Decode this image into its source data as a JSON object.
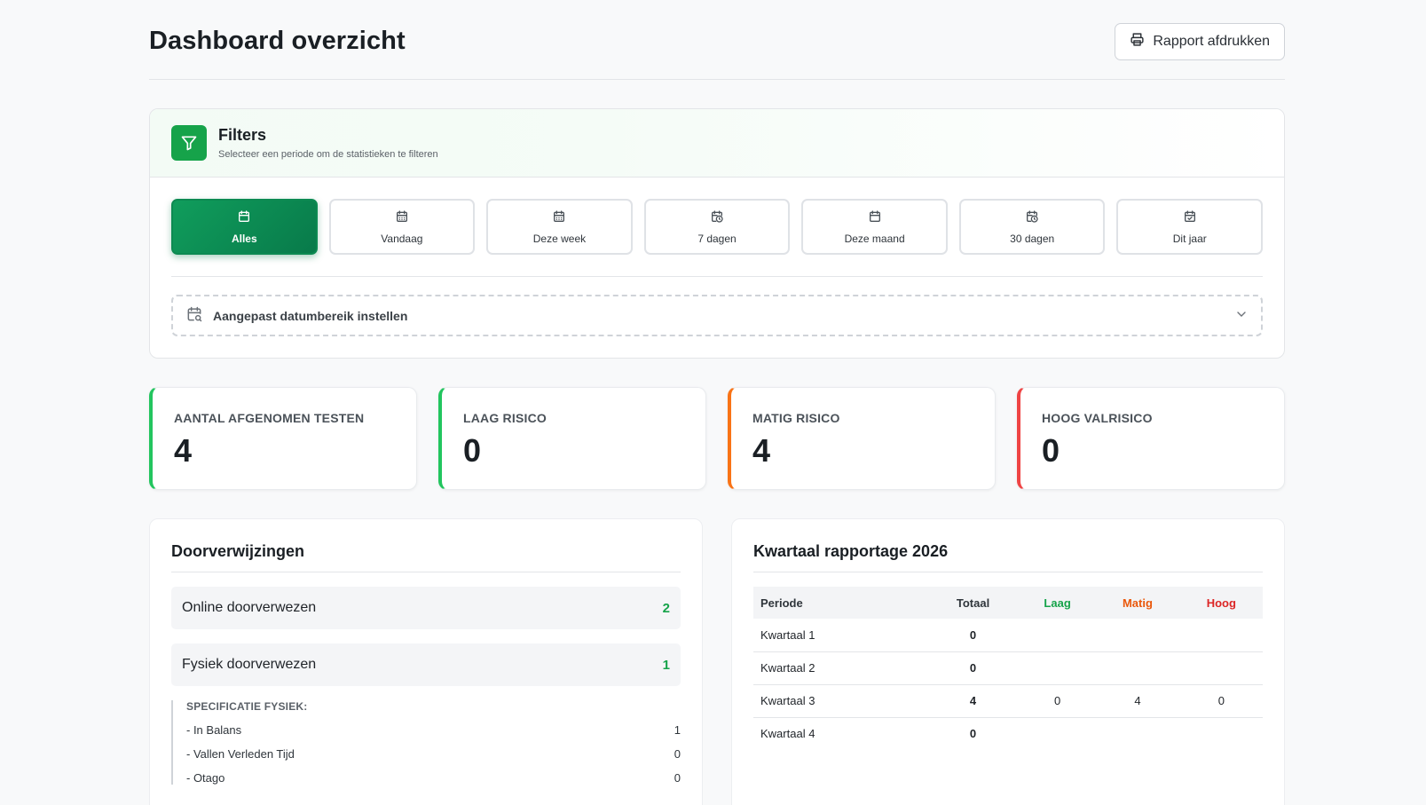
{
  "header": {
    "title": "Dashboard overzicht",
    "print_label": "Rapport afdrukken"
  },
  "filters": {
    "title": "Filters",
    "subtitle": "Selecteer een periode om de statistieken te filteren",
    "periods": [
      {
        "label": "Alles",
        "icon": "calendar-icon",
        "active": true
      },
      {
        "label": "Vandaag",
        "icon": "calendar-icon",
        "active": false
      },
      {
        "label": "Deze week",
        "icon": "calendar-icon",
        "active": false
      },
      {
        "label": "7 dagen",
        "icon": "calendar-clock-icon",
        "active": false
      },
      {
        "label": "Deze maand",
        "icon": "calendar-icon",
        "active": false
      },
      {
        "label": "30 dagen",
        "icon": "calendar-clock-icon",
        "active": false
      },
      {
        "label": "Dit jaar",
        "icon": "calendar-check-icon",
        "active": false
      }
    ],
    "custom_range_label": "Aangepast datumbereik instellen"
  },
  "stats": [
    {
      "label": "AANTAL AFGENOMEN TESTEN",
      "value": "4",
      "color": "#22c55e"
    },
    {
      "label": "LAAG RISICO",
      "value": "0",
      "color": "#22c55e"
    },
    {
      "label": "MATIG RISICO",
      "value": "4",
      "color": "#f97316"
    },
    {
      "label": "HOOG VALRISICO",
      "value": "0",
      "color": "#ef4444"
    }
  ],
  "referrals": {
    "title": "Doorverwijzingen",
    "online_label": "Online doorverwezen",
    "online_count": "2",
    "physical_label": "Fysiek doorverwezen",
    "physical_count": "1",
    "spec_title": "SPECIFICATIE FYSIEK:",
    "spec_items": [
      {
        "label": "- In Balans",
        "value": "1"
      },
      {
        "label": "- Vallen Verleden Tijd",
        "value": "0"
      },
      {
        "label": "- Otago",
        "value": "0"
      }
    ]
  },
  "quarterly": {
    "title": "Kwartaal rapportage 2026",
    "columns": {
      "period": "Periode",
      "total": "Totaal",
      "low": "Laag",
      "moderate": "Matig",
      "high": "Hoog"
    },
    "rows": [
      {
        "period": "Kwartaal 1",
        "total": "0",
        "low": "",
        "moderate": "",
        "high": ""
      },
      {
        "period": "Kwartaal 2",
        "total": "0",
        "low": "",
        "moderate": "",
        "high": ""
      },
      {
        "period": "Kwartaal 3",
        "total": "4",
        "low": "0",
        "moderate": "4",
        "high": "0"
      },
      {
        "period": "Kwartaal 4",
        "total": "0",
        "low": "",
        "moderate": "",
        "high": ""
      }
    ]
  },
  "colors": {
    "accent_green": "#16a34a",
    "active_filter": "#0d8a52",
    "low": "#16a34a",
    "moderate": "#ea580c",
    "high": "#dc2626"
  }
}
